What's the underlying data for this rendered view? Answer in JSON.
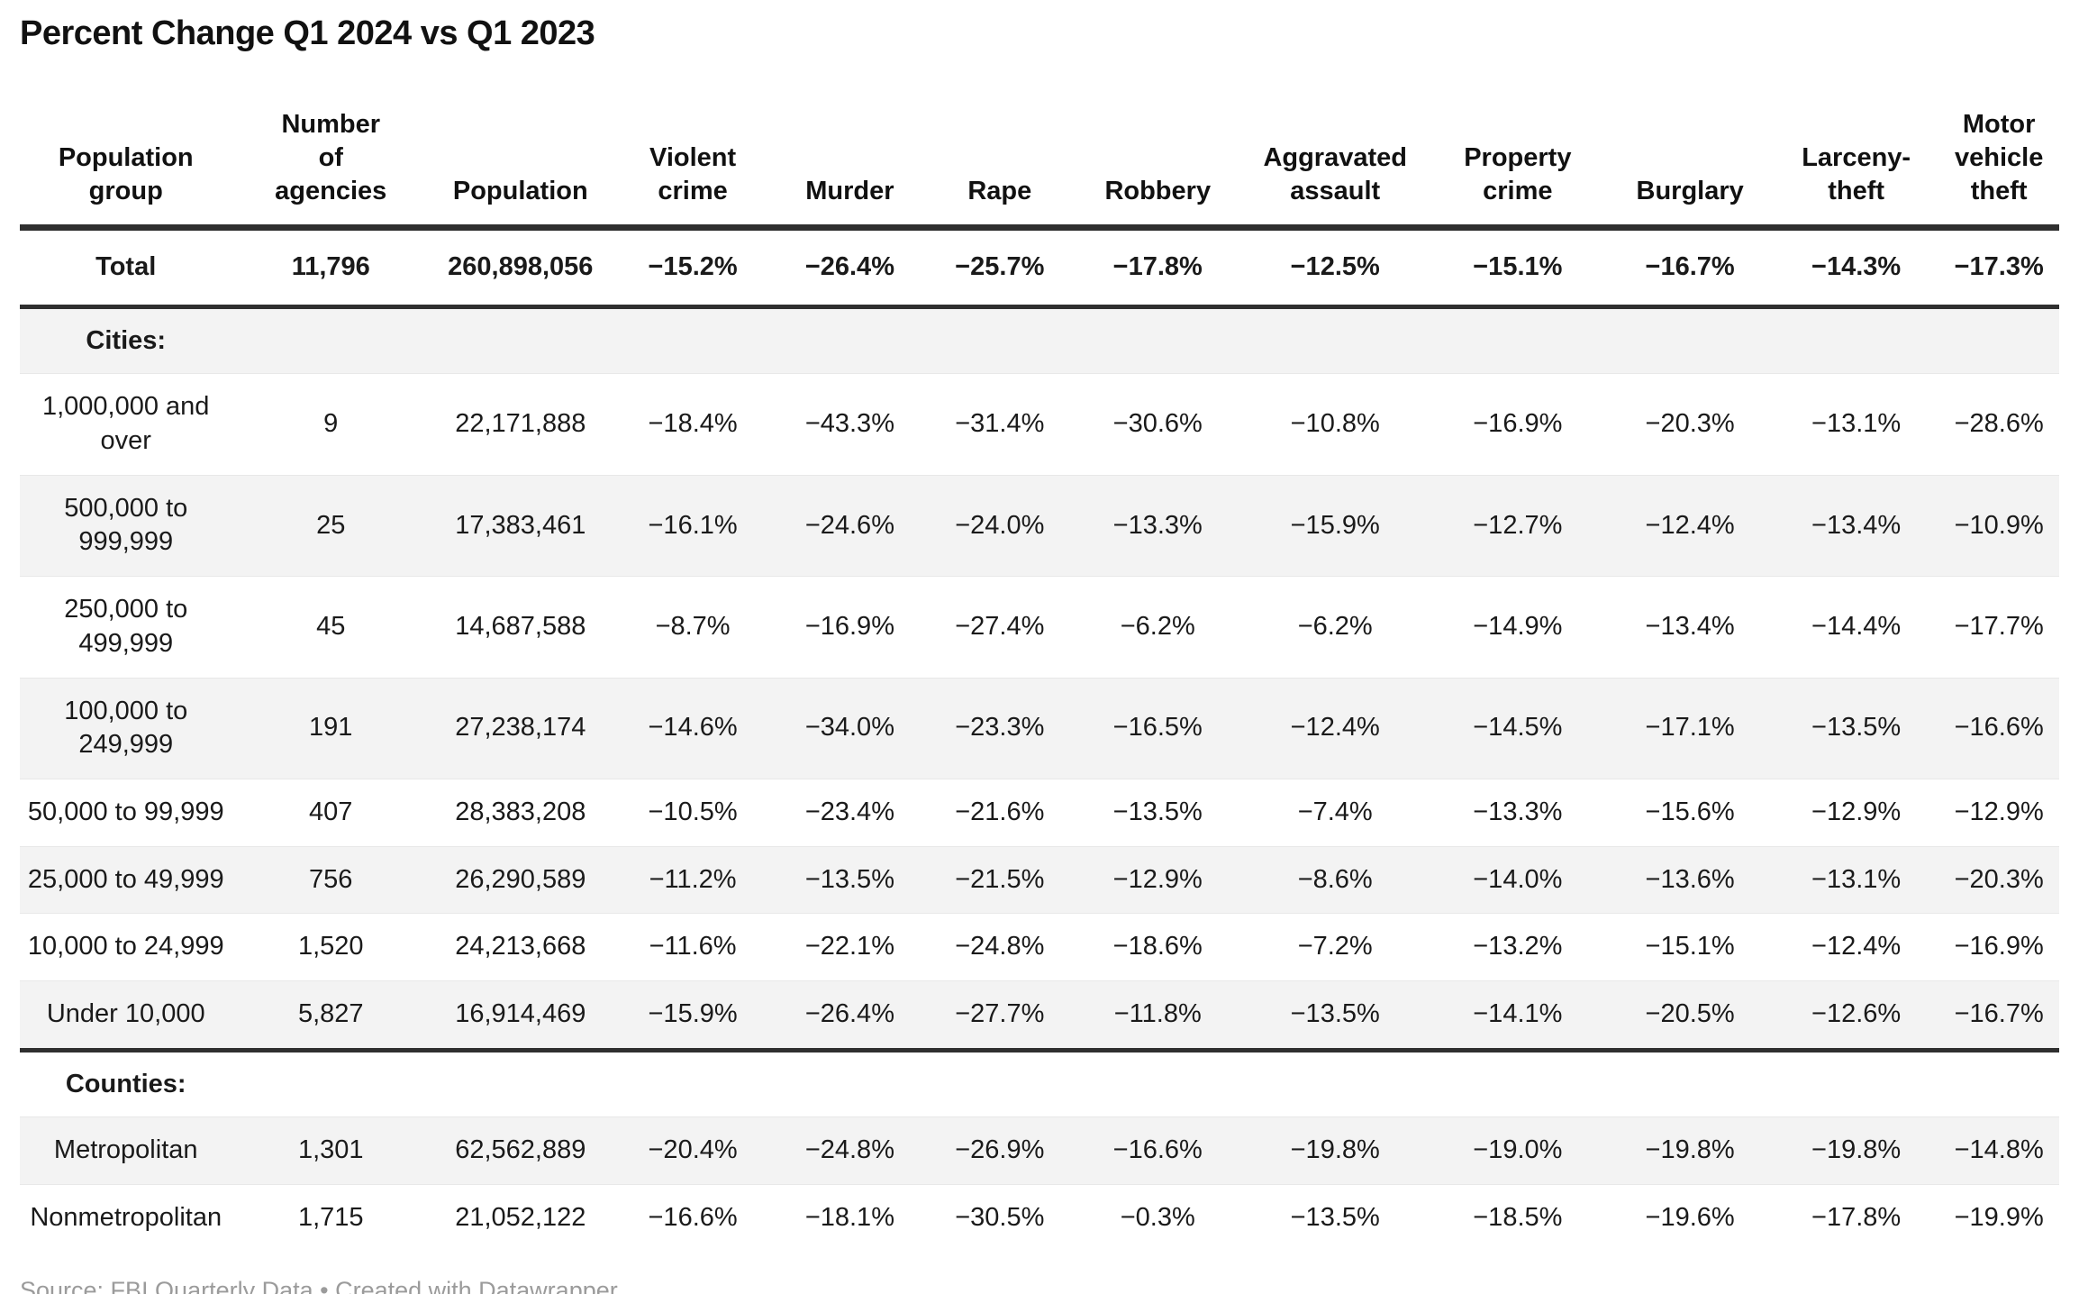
{
  "title": "Percent Change Q1 2024 vs Q1 2023",
  "chart_data": {
    "type": "table",
    "title": "Percent Change Q1 2024 vs Q1 2023",
    "columns": [
      "Population\ngroup",
      "Number\nof\nagencies",
      "Population",
      "Violent\ncrime",
      "Murder",
      "Rape",
      "Robbery",
      "Aggravated\nassault",
      "Property\ncrime",
      "Burglary",
      "Larceny-\ntheft",
      "Motor\nvehicle\ntheft"
    ],
    "rows": [
      {
        "type": "total",
        "heavy_border_below": true,
        "label": "Total",
        "cells": [
          "11,796",
          "260,898,056",
          "−15.2%",
          "−26.4%",
          "−25.7%",
          "−17.8%",
          "−12.5%",
          "−15.1%",
          "−16.7%",
          "−14.3%",
          "−17.3%"
        ]
      },
      {
        "type": "section",
        "label": "Cities:"
      },
      {
        "type": "data",
        "label": "1,000,000 and\nover",
        "cells": [
          "9",
          "22,171,888",
          "−18.4%",
          "−43.3%",
          "−31.4%",
          "−30.6%",
          "−10.8%",
          "−16.9%",
          "−20.3%",
          "−13.1%",
          "−28.6%"
        ]
      },
      {
        "type": "data",
        "label": "500,000 to\n999,999",
        "cells": [
          "25",
          "17,383,461",
          "−16.1%",
          "−24.6%",
          "−24.0%",
          "−13.3%",
          "−15.9%",
          "−12.7%",
          "−12.4%",
          "−13.4%",
          "−10.9%"
        ]
      },
      {
        "type": "data",
        "label": "250,000 to\n499,999",
        "cells": [
          "45",
          "14,687,588",
          "−8.7%",
          "−16.9%",
          "−27.4%",
          "−6.2%",
          "−6.2%",
          "−14.9%",
          "−13.4%",
          "−14.4%",
          "−17.7%"
        ]
      },
      {
        "type": "data",
        "label": "100,000 to\n249,999",
        "cells": [
          "191",
          "27,238,174",
          "−14.6%",
          "−34.0%",
          "−23.3%",
          "−16.5%",
          "−12.4%",
          "−14.5%",
          "−17.1%",
          "−13.5%",
          "−16.6%"
        ]
      },
      {
        "type": "data",
        "label": "50,000 to 99,999",
        "cells": [
          "407",
          "28,383,208",
          "−10.5%",
          "−23.4%",
          "−21.6%",
          "−13.5%",
          "−7.4%",
          "−13.3%",
          "−15.6%",
          "−12.9%",
          "−12.9%"
        ]
      },
      {
        "type": "data",
        "label": "25,000 to 49,999",
        "cells": [
          "756",
          "26,290,589",
          "−11.2%",
          "−13.5%",
          "−21.5%",
          "−12.9%",
          "−8.6%",
          "−14.0%",
          "−13.6%",
          "−13.1%",
          "−20.3%"
        ]
      },
      {
        "type": "data",
        "label": "10,000 to 24,999",
        "cells": [
          "1,520",
          "24,213,668",
          "−11.6%",
          "−22.1%",
          "−24.8%",
          "−18.6%",
          "−7.2%",
          "−13.2%",
          "−15.1%",
          "−12.4%",
          "−16.9%"
        ]
      },
      {
        "type": "data",
        "heavy_border_below": true,
        "label": "Under 10,000",
        "cells": [
          "5,827",
          "16,914,469",
          "−15.9%",
          "−26.4%",
          "−27.7%",
          "−11.8%",
          "−13.5%",
          "−14.1%",
          "−20.5%",
          "−12.6%",
          "−16.7%"
        ]
      },
      {
        "type": "section",
        "label": "Counties:"
      },
      {
        "type": "data",
        "label": "Metropolitan",
        "cells": [
          "1,301",
          "62,562,889",
          "−20.4%",
          "−24.8%",
          "−26.9%",
          "−16.6%",
          "−19.8%",
          "−19.0%",
          "−19.8%",
          "−19.8%",
          "−14.8%"
        ]
      },
      {
        "type": "data",
        "label": "Nonmetropolitan",
        "cells": [
          "1,715",
          "21,052,122",
          "−16.6%",
          "−18.1%",
          "−30.5%",
          "−0.3%",
          "−13.5%",
          "−18.5%",
          "−19.6%",
          "−17.8%",
          "−19.9%"
        ]
      }
    ],
    "layout_hints": {
      "column_widths_percent": [
        10.4,
        9.7,
        8.9,
        8.0,
        7.4,
        7.3,
        8.2,
        9.2,
        8.7,
        8.2,
        8.1,
        5.9
      ],
      "stripe_color": "#f3f3f3",
      "heavy_border_color": "#2f2f2f"
    }
  },
  "footer": {
    "source": "Source: FBI Quarterly Data • Created with Datawrapper"
  }
}
